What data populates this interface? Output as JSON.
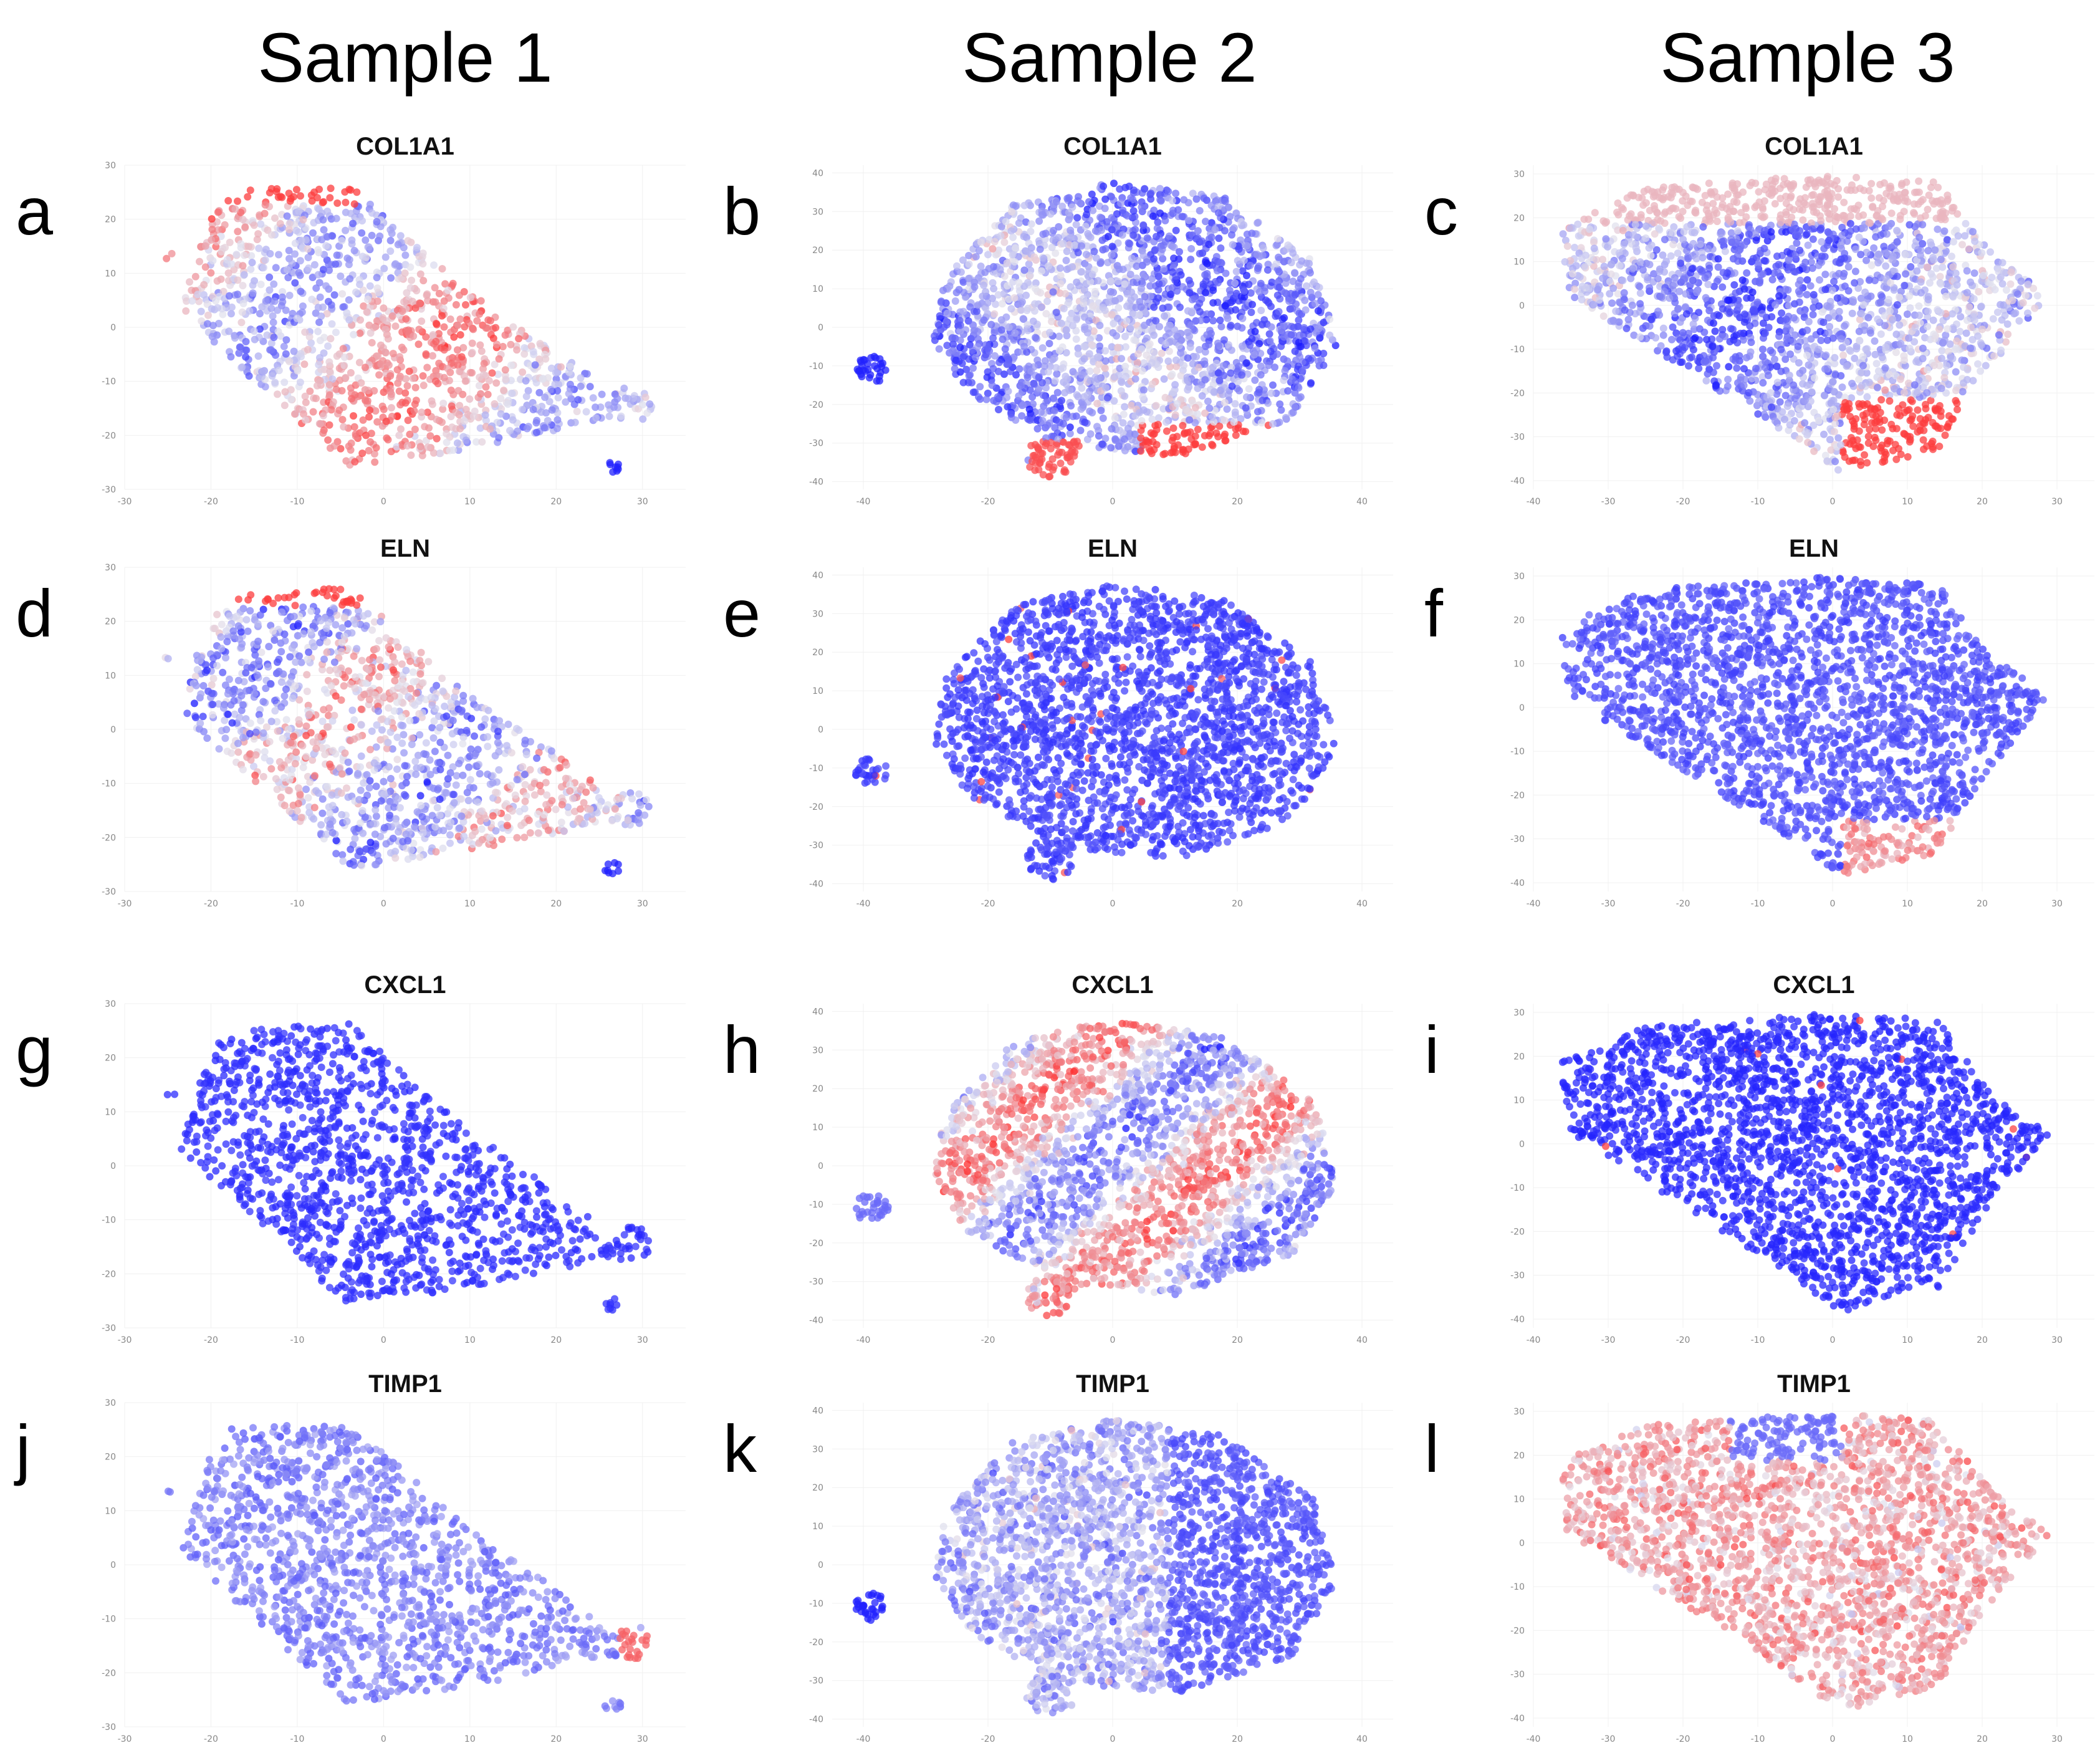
{
  "sample_titles": [
    "Sample 1",
    "Sample 2",
    "Sample 3"
  ],
  "colors": {
    "low": "#1a1aff",
    "mid": "#e2e2ee",
    "high": "#ff2a2a",
    "grid": "#f0f0f0"
  },
  "chart_data": [
    {
      "type": "scatter",
      "letter": "a",
      "sample": "Sample 1",
      "title": "COL1A1",
      "shape": "s1",
      "pattern": "s1_col1a1",
      "xticks": [
        -30,
        -20,
        -10,
        0,
        10,
        20,
        30
      ],
      "yticks": [
        30,
        20,
        10,
        0,
        -10,
        -20,
        -30
      ],
      "xlim": [
        -30,
        35
      ],
      "ylim": [
        -30,
        30
      ]
    },
    {
      "type": "scatter",
      "letter": "b",
      "sample": "Sample 2",
      "title": "COL1A1",
      "shape": "s2",
      "pattern": "s2_col1a1",
      "xticks": [
        -40,
        -20,
        0,
        20,
        40
      ],
      "yticks": [
        40,
        30,
        20,
        10,
        0,
        -10,
        -20,
        -30,
        -40
      ],
      "xlim": [
        -45,
        45
      ],
      "ylim": [
        -42,
        42
      ]
    },
    {
      "type": "scatter",
      "letter": "c",
      "sample": "Sample 3",
      "title": "COL1A1",
      "shape": "s3",
      "pattern": "s3_col1a1",
      "xticks": [
        -40,
        -30,
        -20,
        -10,
        0,
        10,
        20,
        30
      ],
      "yticks": [
        30,
        20,
        10,
        0,
        -10,
        -20,
        -30,
        -40
      ],
      "xlim": [
        -40,
        35
      ],
      "ylim": [
        -42,
        32
      ]
    },
    {
      "type": "scatter",
      "letter": "d",
      "sample": "Sample 1",
      "title": "ELN",
      "shape": "s1",
      "pattern": "s1_eln",
      "xticks": [
        -30,
        -20,
        -10,
        0,
        10,
        20,
        30
      ],
      "yticks": [
        30,
        20,
        10,
        0,
        -10,
        -20,
        -30
      ],
      "xlim": [
        -30,
        35
      ],
      "ylim": [
        -30,
        30
      ]
    },
    {
      "type": "scatter",
      "letter": "e",
      "sample": "Sample 2",
      "title": "ELN",
      "shape": "s2",
      "pattern": "s2_eln",
      "xticks": [
        -40,
        -20,
        0,
        20,
        40
      ],
      "yticks": [
        40,
        30,
        20,
        10,
        0,
        -10,
        -20,
        -30,
        -40
      ],
      "xlim": [
        -45,
        45
      ],
      "ylim": [
        -42,
        42
      ]
    },
    {
      "type": "scatter",
      "letter": "f",
      "sample": "Sample 3",
      "title": "ELN",
      "shape": "s3",
      "pattern": "s3_eln",
      "xticks": [
        -40,
        -30,
        -20,
        -10,
        0,
        10,
        20,
        30
      ],
      "yticks": [
        30,
        20,
        10,
        0,
        -10,
        -20,
        -30,
        -40
      ],
      "xlim": [
        -40,
        35
      ],
      "ylim": [
        -42,
        32
      ]
    },
    {
      "type": "scatter",
      "letter": "g",
      "sample": "Sample 1",
      "title": "CXCL1",
      "shape": "s1",
      "pattern": "s1_cxcl1",
      "xticks": [
        -30,
        -20,
        -10,
        0,
        10,
        20,
        30
      ],
      "yticks": [
        30,
        20,
        10,
        0,
        -10,
        -20,
        -30
      ],
      "xlim": [
        -30,
        35
      ],
      "ylim": [
        -30,
        30
      ]
    },
    {
      "type": "scatter",
      "letter": "h",
      "sample": "Sample 2",
      "title": "CXCL1",
      "shape": "s2",
      "pattern": "s2_cxcl1",
      "xticks": [
        -40,
        -20,
        0,
        20,
        40
      ],
      "yticks": [
        40,
        30,
        20,
        10,
        0,
        -10,
        -20,
        -30,
        -40
      ],
      "xlim": [
        -45,
        45
      ],
      "ylim": [
        -42,
        42
      ]
    },
    {
      "type": "scatter",
      "letter": "i",
      "sample": "Sample 3",
      "title": "CXCL1",
      "shape": "s3",
      "pattern": "s3_cxcl1",
      "xticks": [
        -40,
        -30,
        -20,
        -10,
        0,
        10,
        20,
        30
      ],
      "yticks": [
        30,
        20,
        10,
        0,
        -10,
        -20,
        -30,
        -40
      ],
      "xlim": [
        -40,
        35
      ],
      "ylim": [
        -42,
        32
      ]
    },
    {
      "type": "scatter",
      "letter": "j",
      "sample": "Sample 1",
      "title": "TIMP1",
      "shape": "s1",
      "pattern": "s1_timp1",
      "xticks": [
        -30,
        -20,
        -10,
        0,
        10,
        20,
        30
      ],
      "yticks": [
        30,
        20,
        10,
        0,
        -10,
        -20,
        -30
      ],
      "xlim": [
        -30,
        35
      ],
      "ylim": [
        -30,
        30
      ]
    },
    {
      "type": "scatter",
      "letter": "k",
      "sample": "Sample 2",
      "title": "TIMP1",
      "shape": "s2",
      "pattern": "s2_timp1",
      "xticks": [
        -40,
        -20,
        0,
        20,
        40
      ],
      "yticks": [
        40,
        30,
        20,
        10,
        0,
        -10,
        -20,
        -30,
        -40
      ],
      "xlim": [
        -45,
        45
      ],
      "ylim": [
        -42,
        42
      ]
    },
    {
      "type": "scatter",
      "letter": "l",
      "sample": "Sample 3",
      "title": "TIMP1",
      "shape": "s3",
      "pattern": "s3_timp1",
      "xticks": [
        -40,
        -30,
        -20,
        -10,
        0,
        10,
        20,
        30
      ],
      "yticks": [
        30,
        20,
        10,
        0,
        -10,
        -20,
        -30,
        -40
      ],
      "xlim": [
        -40,
        35
      ],
      "ylim": [
        -42,
        32
      ]
    }
  ]
}
